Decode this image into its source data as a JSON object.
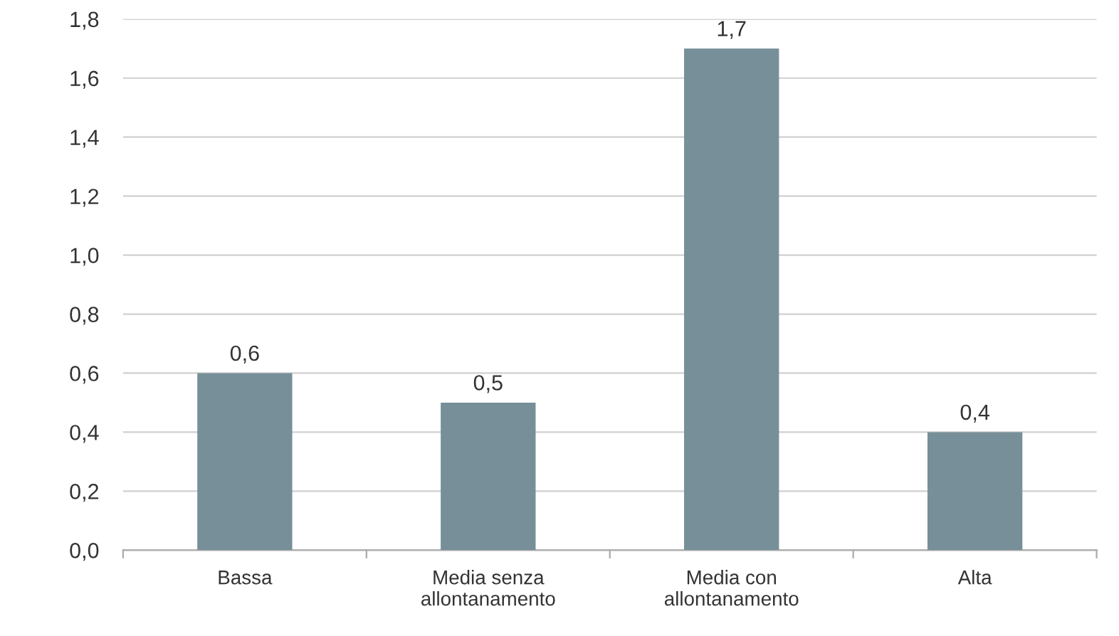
{
  "chart_data": {
    "type": "bar",
    "categories": [
      "Bassa",
      "Media senza\nallontanamento",
      "Media con\nallontanamento",
      "Alta"
    ],
    "values": [
      0.6,
      0.5,
      1.7,
      0.4
    ],
    "value_labels": [
      "0,6",
      "0,5",
      "1,7",
      "0,4"
    ],
    "color": "#778f98",
    "ylim": [
      0,
      1.8
    ],
    "yticks": [
      {
        "value": 0,
        "label": "0,0"
      },
      {
        "value": 0.2,
        "label": "0,2"
      },
      {
        "value": 0.4,
        "label": "0,4"
      },
      {
        "value": 0.6,
        "label": "0,6"
      },
      {
        "value": 0.8,
        "label": "0,8"
      },
      {
        "value": 1.0,
        "label": "1,0"
      },
      {
        "value": 1.2,
        "label": "1,2"
      },
      {
        "value": 1.4,
        "label": "1,4"
      },
      {
        "value": 1.6,
        "label": "1,6"
      },
      {
        "value": 1.8,
        "label": "1,8"
      }
    ],
    "grid": "y"
  }
}
